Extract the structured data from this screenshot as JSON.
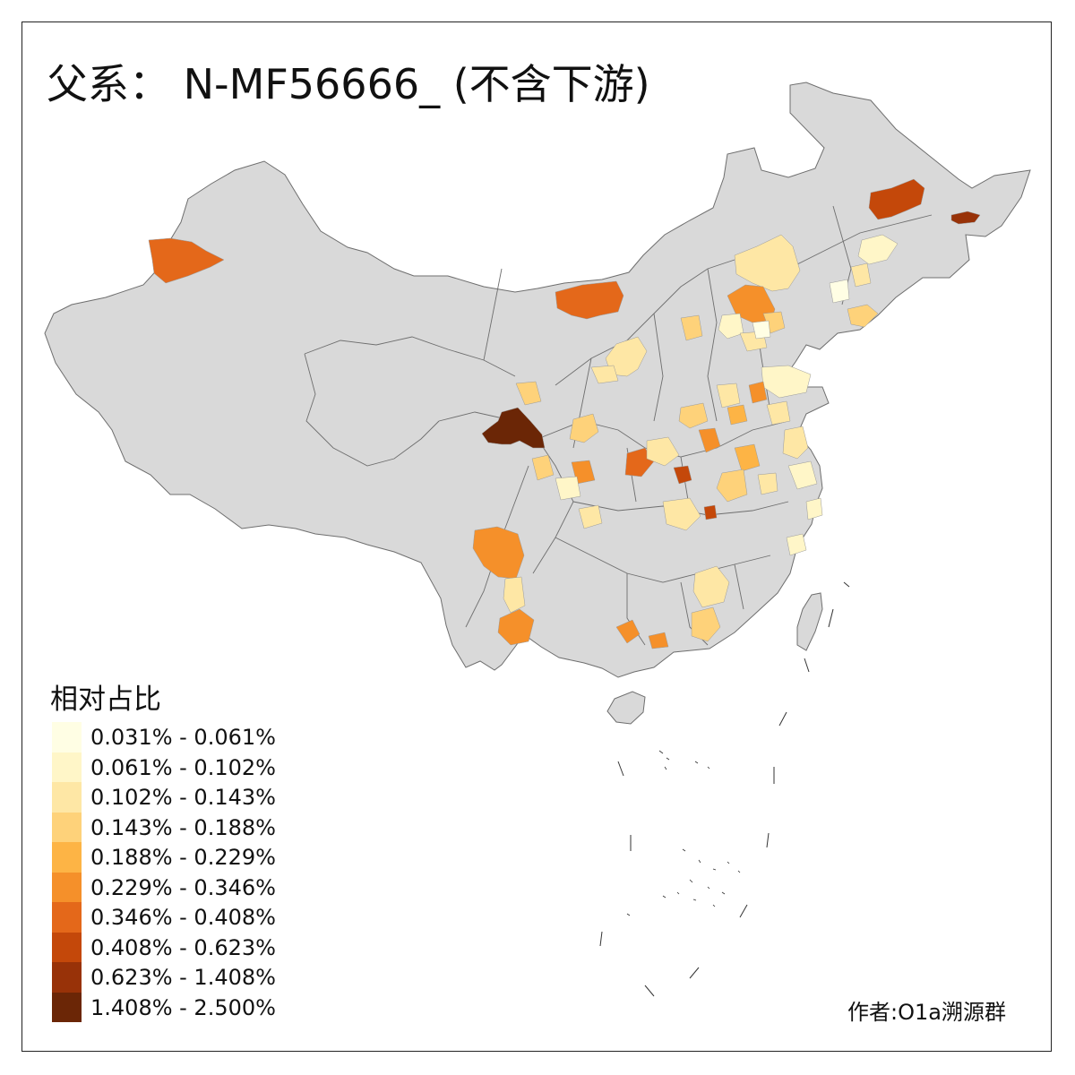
{
  "title": "父系： N-MF56666_ (不含下游)",
  "legend": {
    "title": "相对占比",
    "items": [
      {
        "label": "0.031% - 0.061%",
        "color": "#FFFEE4"
      },
      {
        "label": "0.061% - 0.102%",
        "color": "#FFF6C8"
      },
      {
        "label": "0.102% - 0.143%",
        "color": "#FEE7A5"
      },
      {
        "label": "0.143% - 0.188%",
        "color": "#FED27A"
      },
      {
        "label": "0.188% - 0.229%",
        "color": "#FDB445"
      },
      {
        "label": "0.229% - 0.346%",
        "color": "#F5902A"
      },
      {
        "label": "0.346% - 0.408%",
        "color": "#E4681A"
      },
      {
        "label": "0.408% - 0.623%",
        "color": "#C4480A"
      },
      {
        "label": "0.623% - 1.408%",
        "color": "#983208"
      },
      {
        "label": "1.408% - 2.500%",
        "color": "#6B2606"
      }
    ]
  },
  "author": "作者:O1a溯源群",
  "colors": {
    "land": "#D9D9D9",
    "border": "#6E6E6E",
    "frame": "#222222"
  }
}
